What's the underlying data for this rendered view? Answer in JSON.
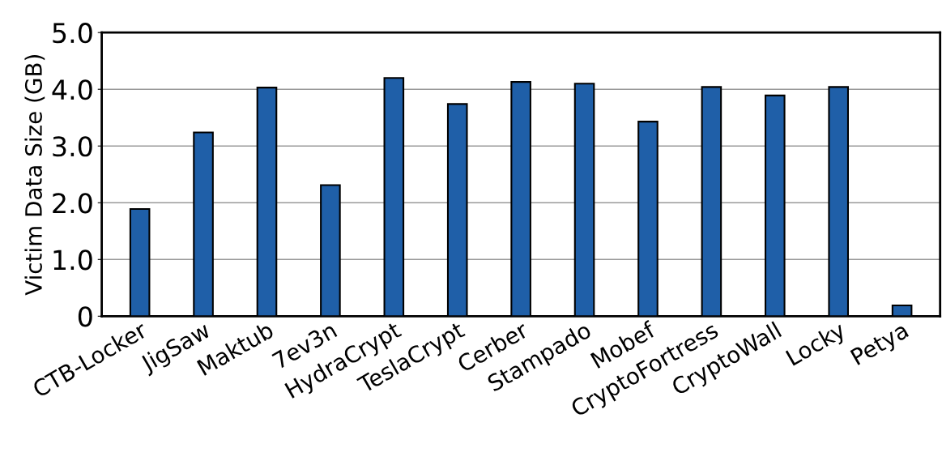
{
  "chart_data": {
    "type": "bar",
    "ylabel": "Victim Data Size (GB)",
    "categories": [
      "CTB-Locker",
      "JigSaw",
      "Maktub",
      "7ev3n",
      "HydraCrypt",
      "TeslaCrypt",
      "Cerber",
      "Stampado",
      "Mobef",
      "CryptoFortress",
      "CryptoWall",
      "Locky",
      "Petya"
    ],
    "values": [
      1.89,
      3.24,
      4.03,
      2.31,
      4.2,
      3.74,
      4.13,
      4.1,
      3.43,
      4.04,
      3.89,
      4.04,
      0.19
    ],
    "color": "#1f5fa8",
    "ylim": [
      0,
      5.0
    ],
    "yticks": [
      {
        "value": 0,
        "label": "0"
      },
      {
        "value": 1.0,
        "label": "1.0"
      },
      {
        "value": 2.0,
        "label": "2.0"
      },
      {
        "value": 3.0,
        "label": "3.0"
      },
      {
        "value": 4.0,
        "label": "4.0"
      },
      {
        "value": 5.0,
        "label": "5.0"
      }
    ],
    "grid": "y"
  }
}
